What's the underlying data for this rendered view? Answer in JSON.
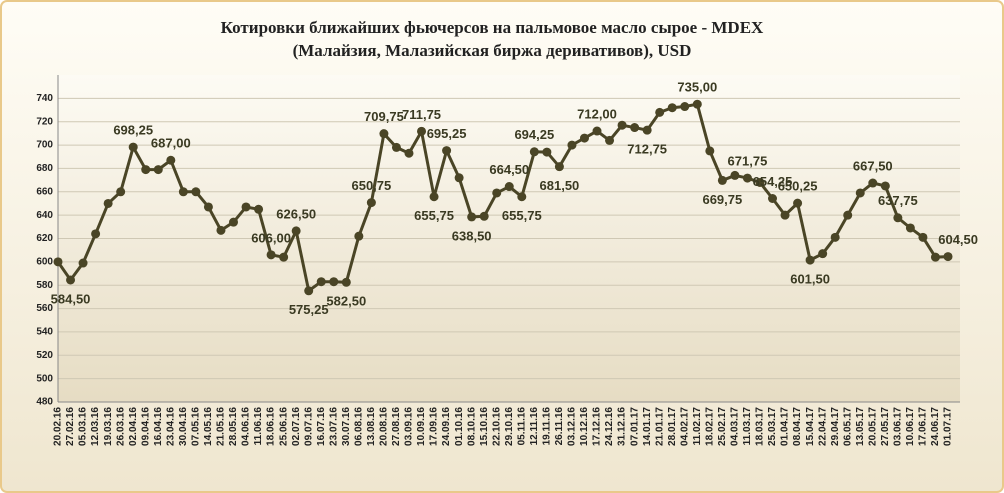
{
  "chart_data": {
    "type": "line",
    "title": "Котировки ближайших фьючерсов на пальмовое масло сырое - MDEX",
    "subtitle": "(Малайзия, Малазийская биржа деривативов), USD",
    "categories": [
      "20.02.16",
      "27.02.16",
      "05.03.16",
      "12.03.16",
      "19.03.16",
      "26.03.16",
      "02.04.16",
      "09.04.16",
      "16.04.16",
      "23.04.16",
      "30.04.16",
      "07.05.16",
      "14.05.16",
      "21.05.16",
      "28.05.16",
      "04.06.16",
      "11.06.16",
      "18.06.16",
      "25.06.16",
      "02.07.16",
      "09.07.16",
      "16.07.16",
      "23.07.16",
      "30.07.16",
      "06.08.16",
      "13.08.16",
      "20.08.16",
      "27.08.16",
      "03.09.16",
      "10.09.16",
      "17.09.16",
      "24.09.16",
      "01.10.16",
      "08.10.16",
      "15.10.16",
      "22.10.16",
      "29.10.16",
      "05.11.16",
      "12.11.16",
      "19.11.16",
      "26.11.16",
      "03.12.16",
      "10.12.16",
      "17.12.16",
      "24.12.16",
      "31.12.16",
      "07.01.17",
      "14.01.17",
      "21.01.17",
      "28.01.17",
      "04.02.17",
      "11.02.17",
      "18.02.17",
      "25.02.17",
      "04.03.17",
      "11.03.17",
      "18.03.17",
      "25.03.17",
      "01.04.17",
      "08.04.17",
      "15.04.17",
      "22.04.17",
      "29.04.17",
      "06.05.17",
      "13.05.17",
      "20.05.17",
      "27.05.17",
      "03.06.17",
      "10.06.17",
      "17.06.17",
      "24.06.17",
      "01.07.17"
    ],
    "values": [
      600,
      584.5,
      599,
      624,
      650,
      660,
      698.25,
      679,
      679,
      687,
      660,
      660,
      647,
      627,
      634,
      647,
      645,
      606,
      604,
      626.5,
      575.25,
      583,
      583,
      582.5,
      622,
      650.75,
      709.75,
      698,
      693,
      711.75,
      655.75,
      695.25,
      672,
      638.5,
      639,
      659,
      664.5,
      655.75,
      694.25,
      694,
      681.5,
      700,
      706,
      712,
      704,
      717,
      715,
      712.75,
      728,
      732,
      733,
      735,
      695,
      669.75,
      674,
      671.75,
      668,
      654.25,
      640,
      650.25,
      601.5,
      607,
      621,
      640,
      659,
      667.5,
      665,
      637.75,
      629,
      621,
      604,
      604.5
    ],
    "value_labels": [
      null,
      "584,50",
      null,
      null,
      null,
      null,
      "698,25",
      null,
      null,
      "687,00",
      null,
      null,
      null,
      null,
      null,
      null,
      null,
      "606,00",
      null,
      "626,50",
      "575,25",
      null,
      null,
      "582,50",
      null,
      "650,75",
      "709,75",
      null,
      null,
      "711,75",
      "655,75",
      "695,25",
      null,
      "638,50",
      null,
      null,
      "664,50",
      "655,75",
      "694,25",
      null,
      "681,50",
      null,
      null,
      "712,00",
      null,
      null,
      null,
      "712,75",
      null,
      null,
      null,
      "735,00",
      null,
      "669,75",
      null,
      "671,75",
      null,
      "654,25",
      null,
      "650,25",
      "601,50",
      null,
      null,
      null,
      null,
      "667,50",
      null,
      "637,75",
      null,
      null,
      null,
      "604,50"
    ],
    "color": "#4a4526",
    "ylim": [
      480,
      760
    ],
    "yticks": [
      480,
      500,
      520,
      540,
      560,
      580,
      600,
      620,
      640,
      660,
      680,
      700,
      720,
      740
    ],
    "grid": true
  }
}
